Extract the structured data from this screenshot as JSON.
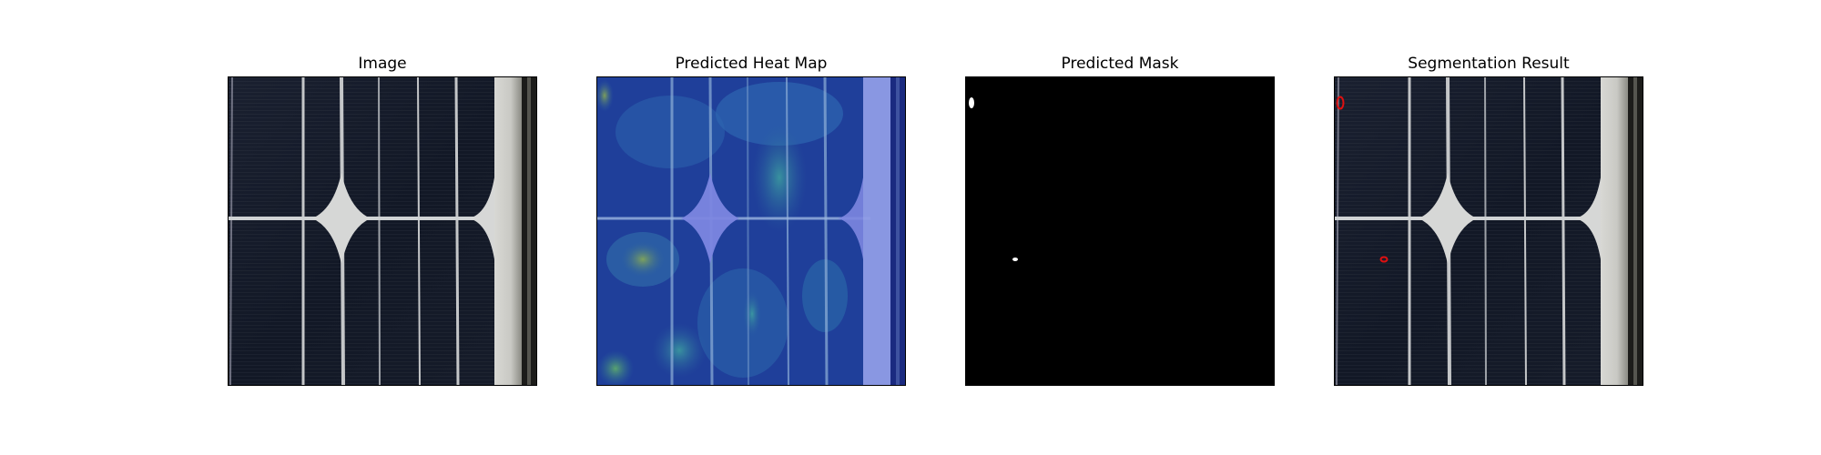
{
  "figure": {
    "panels": [
      {
        "title": "Image",
        "icon": "solar-cell-image"
      },
      {
        "title": "Predicted Heat Map",
        "icon": "heat-map-overlay"
      },
      {
        "title": "Predicted Mask",
        "icon": "binary-mask"
      },
      {
        "title": "Segmentation Result",
        "icon": "segmentation-overlay"
      }
    ],
    "colors": {
      "cell_background": "#121826",
      "busbar": "#cfd2d4",
      "heatmap_base": "#1f3fa0",
      "heatmap_hot": "#3ea58a",
      "mask_background": "#000000",
      "mask_foreground": "#ffffff",
      "contour": "#e01010"
    }
  }
}
